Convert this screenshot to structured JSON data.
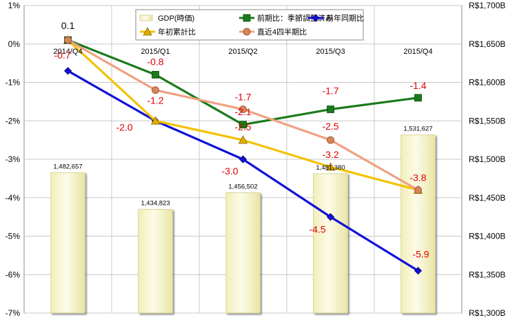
{
  "chart_data": {
    "type": "bar+line",
    "categories": [
      "2014/Q4",
      "2015/Q1",
      "2015/Q2",
      "2015/Q3",
      "2015/Q4"
    ],
    "y_left": {
      "min": -7,
      "max": 1,
      "step": 1,
      "ticks": [
        "1%",
        "0%",
        "-1%",
        "-2%",
        "-3%",
        "-4%",
        "-5%",
        "-6%",
        "-7%"
      ]
    },
    "y_right": {
      "min": 1300,
      "max": 1700,
      "step": 50,
      "ticks": [
        "R$1,700B",
        "R$1,650B",
        "R$1,600B",
        "R$1,550B",
        "R$1,500B",
        "R$1,450B",
        "R$1,400B",
        "R$1,350B",
        "R$1,300B"
      ]
    },
    "bars": {
      "name": "GDP(時価)",
      "values": [
        1482.657,
        1434.823,
        1456.502,
        1481.38,
        1531.627
      ],
      "labels": [
        "1,482,657",
        "1,434,823",
        "1,456,502",
        "1,481,380",
        "1,531,627"
      ]
    },
    "series": [
      {
        "name": "前期比：季節調整済み",
        "key": "qoq",
        "color": "#1a7a1a",
        "marker": "square",
        "values": [
          0.1,
          -0.8,
          -2.1,
          -1.7,
          -1.4
        ],
        "labels": [
          "0.1",
          "-0.8",
          "-2.1",
          "-1.7",
          "-1.4"
        ]
      },
      {
        "name": "前年同期比",
        "key": "yoy",
        "color": "#1010d8",
        "marker": "diamond",
        "values": [
          -0.7,
          -2.0,
          -3.0,
          -4.5,
          -5.9
        ],
        "labels": [
          "-0.7",
          "-2.0",
          "-3.0",
          "-4.5",
          "-5.9"
        ]
      },
      {
        "name": "年初累計比",
        "key": "ytd",
        "color": "#f2c200",
        "marker": "triangle",
        "values": [
          0.1,
          -2.0,
          -2.5,
          -3.2,
          -3.8
        ],
        "labels": [
          "",
          "",
          "-2.5",
          "-3.2",
          ""
        ]
      },
      {
        "name": "直近4四半期比",
        "key": "r4q",
        "color": "#f0a080",
        "marker": "circle",
        "values": [
          0.1,
          -1.2,
          -1.7,
          -2.5,
          -3.8
        ],
        "labels": [
          "",
          "-1.2",
          "-1.7",
          "-2.5",
          "-3.8"
        ]
      }
    ],
    "legend_order": [
      "GDP(時価)",
      "前期比：季節調整済み",
      "前年同期比",
      "年初累計比",
      "直近4四半期比"
    ],
    "legend_position": "top-center",
    "grid": true,
    "colors": {
      "bar_fill": "#f7f5cf",
      "bar_edge": "#d8d49a",
      "plot_bg": "#ffffff",
      "grid": "#c8c8c8"
    }
  }
}
